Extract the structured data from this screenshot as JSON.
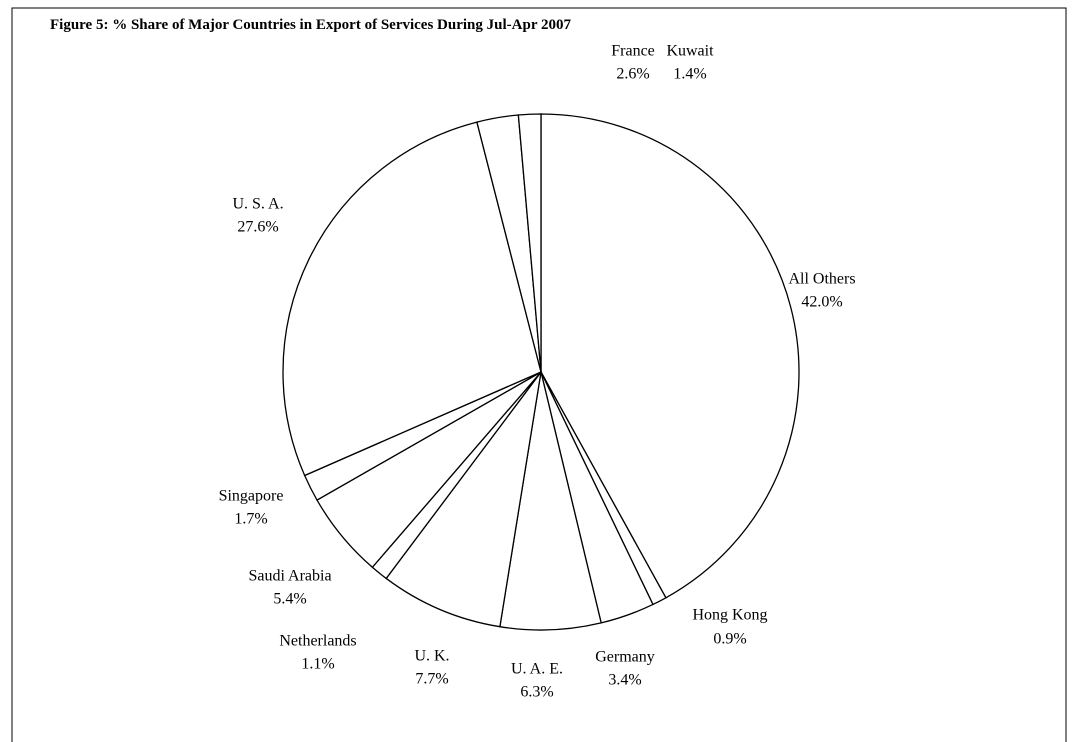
{
  "chart_data": {
    "type": "pie",
    "title": "Figure 5: % Share of Major Countries in Export of Services During  Jul-Apr  2007",
    "categories": [
      "All Others",
      "Hong Kong",
      "Germany",
      "U. A. E.",
      "U. K.",
      "Netherlands",
      "Saudi Arabia",
      "Singapore",
      "U. S. A.",
      "France",
      "Kuwait"
    ],
    "values": [
      42.0,
      0.9,
      3.4,
      6.3,
      7.7,
      1.1,
      5.4,
      1.7,
      27.6,
      2.6,
      1.4
    ],
    "value_labels": [
      "42.0%",
      "0.9%",
      "3.4%",
      "6.3%",
      "7.7%",
      "1.1%",
      "5.4%",
      "1.7%",
      "27.6%",
      "2.6%",
      "1.4%"
    ],
    "color": "#ffffff"
  }
}
